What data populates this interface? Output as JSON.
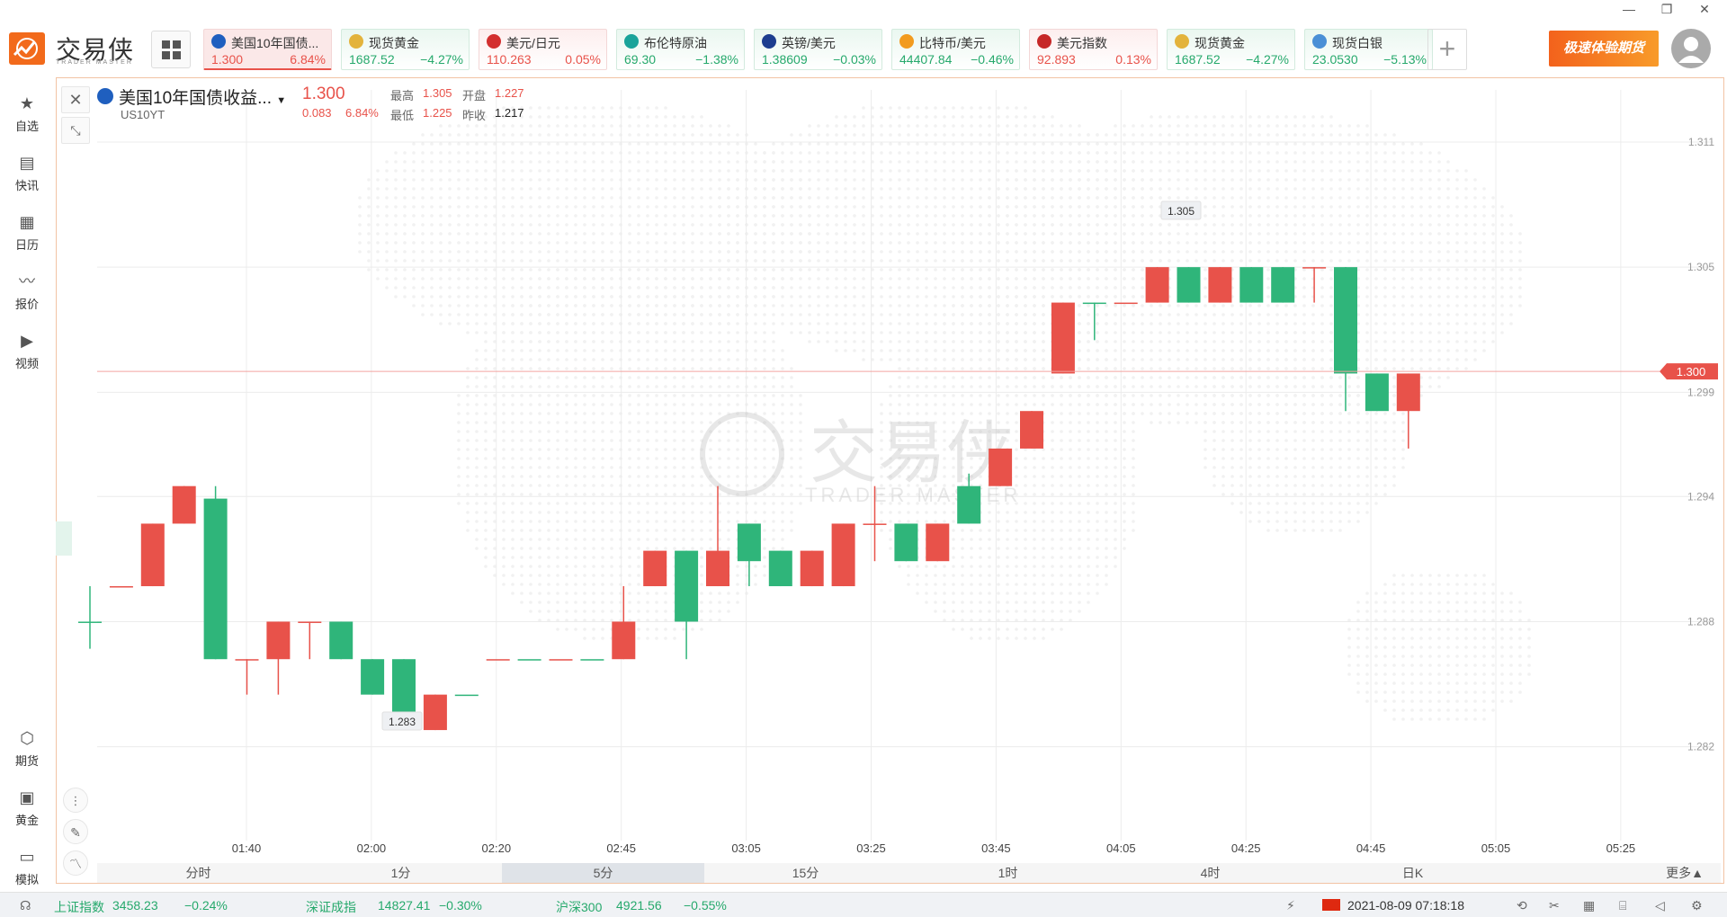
{
  "app": {
    "logo_cn": "交易侠",
    "logo_en": "TRADER MASTER"
  },
  "tickers": [
    {
      "name": "美国10年国债...",
      "price": "1.300",
      "change": "6.84%",
      "trend": "up",
      "icon_color": "#1f5fbf",
      "icon": "bars-icon",
      "active": true
    },
    {
      "name": "现货黄金",
      "price": "1687.52",
      "change": "−4.27%",
      "trend": "down",
      "icon_color": "#e3b33c",
      "icon": "gold-icon"
    },
    {
      "name": "美元/日元",
      "price": "110.263",
      "change": "0.05%",
      "trend": "up",
      "icon_color": "#d32f2f",
      "icon": "flag-us-jp-icon"
    },
    {
      "name": "布伦特原油",
      "price": "69.30",
      "change": "−1.38%",
      "trend": "down",
      "icon_color": "#1aa39a",
      "icon": "oil-icon"
    },
    {
      "name": "英镑/美元",
      "price": "1.38609",
      "change": "−0.03%",
      "trend": "down",
      "icon_color": "#1d3d8f",
      "icon": "flag-uk-us-icon"
    },
    {
      "name": "比特币/美元",
      "price": "44407.84",
      "change": "−0.46%",
      "trend": "down",
      "icon_color": "#f29b1f",
      "icon": "bitcoin-icon"
    },
    {
      "name": "美元指数",
      "price": "92.893",
      "change": "0.13%",
      "trend": "up",
      "icon_color": "#c62828",
      "icon": "flag-us-icon"
    },
    {
      "name": "现货黄金",
      "price": "1687.52",
      "change": "−4.27%",
      "trend": "down",
      "icon_color": "#e3b33c",
      "icon": "gold-icon"
    },
    {
      "name": "现货白银",
      "price": "23.0530",
      "change": "−5.13%",
      "trend": "down",
      "icon_color": "#4a8fd6",
      "icon": "silver-icon"
    }
  ],
  "promo": "极速体验期货",
  "sidebar": [
    {
      "label": "自选",
      "icon": "star-bookmark-icon"
    },
    {
      "label": "快讯",
      "icon": "news-icon"
    },
    {
      "label": "日历",
      "icon": "calendar-icon"
    },
    {
      "label": "报价",
      "icon": "quote-chart-icon"
    },
    {
      "label": "视频",
      "icon": "video-icon"
    },
    {
      "label": "期货",
      "icon": "futures-icon"
    },
    {
      "label": "黄金",
      "icon": "gold-chip-icon"
    },
    {
      "label": "模拟",
      "icon": "wallet-icon"
    }
  ],
  "symbol": {
    "name": "美国10年国债收益...",
    "code": "US10YT",
    "price": "1.300",
    "change": "0.083",
    "change_pct": "6.84%",
    "high_label": "最高",
    "high": "1.305",
    "low_label": "最低",
    "low": "1.225",
    "open_label": "开盘",
    "open": "1.227",
    "prev_label": "昨收",
    "prev": "1.217"
  },
  "watermark": {
    "cn": "交易侠",
    "en": "TRADER MASTER"
  },
  "intervals": {
    "items": [
      "分时",
      "1分",
      "5分",
      "15分",
      "1时",
      "4时",
      "日K"
    ],
    "selected": "5分",
    "more": "更多▲"
  },
  "status": {
    "items": [
      {
        "name": "上证指数",
        "value": "3458.23",
        "change": "−0.24%"
      },
      {
        "name": "深证成指",
        "value": "14827.41",
        "change": "−0.30%"
      },
      {
        "name": "沪深300",
        "value": "4921.56",
        "change": "−0.55%"
      }
    ],
    "datetime": "2021-08-09 07:18:18"
  },
  "chart_data": {
    "type": "candlestick",
    "y_axis_ticks": [
      "1.311",
      "1.305",
      "1.299",
      "1.294",
      "1.288",
      "1.282"
    ],
    "x_axis_ticks": [
      "01:40",
      "02:00",
      "02:20",
      "02:45",
      "03:05",
      "03:25",
      "03:45",
      "04:05",
      "04:25",
      "04:45",
      "05:05",
      "05:25"
    ],
    "ylim": [
      1.2775,
      1.3135
    ],
    "current_price_label": "1.300",
    "current_price": 1.3,
    "high_marker": "1.305",
    "low_marker": "1.283",
    "grid": true,
    "candles": [
      {
        "o": 1.288,
        "c": 1.288,
        "h": 1.2897,
        "l": 1.2867
      },
      {
        "o": 1.2897,
        "c": 1.2897,
        "h": 1.2897,
        "l": 1.2897
      },
      {
        "o": 1.2897,
        "c": 1.2927,
        "h": 1.2927,
        "l": 1.2897
      },
      {
        "o": 1.2927,
        "c": 1.2945,
        "h": 1.2945,
        "l": 1.2927
      },
      {
        "o": 1.2939,
        "c": 1.2862,
        "h": 1.2945,
        "l": 1.2862
      },
      {
        "o": 1.2862,
        "c": 1.2862,
        "h": 1.2862,
        "l": 1.2845
      },
      {
        "o": 1.2862,
        "c": 1.288,
        "h": 1.288,
        "l": 1.2845
      },
      {
        "o": 1.288,
        "c": 1.288,
        "h": 1.288,
        "l": 1.2862
      },
      {
        "o": 1.288,
        "c": 1.2862,
        "h": 1.288,
        "l": 1.2862
      },
      {
        "o": 1.2862,
        "c": 1.2845,
        "h": 1.2862,
        "l": 1.2845
      },
      {
        "o": 1.2862,
        "c": 1.2828,
        "h": 1.2862,
        "l": 1.2828
      },
      {
        "o": 1.2828,
        "c": 1.2845,
        "h": 1.2845,
        "l": 1.2828
      },
      {
        "o": 1.2845,
        "c": 1.2845,
        "h": 1.2845,
        "l": 1.2845
      },
      {
        "o": 1.2862,
        "c": 1.2862,
        "h": 1.2862,
        "l": 1.2862
      },
      {
        "o": 1.2862,
        "c": 1.2862,
        "h": 1.2862,
        "l": 1.2862
      },
      {
        "o": 1.2862,
        "c": 1.2862,
        "h": 1.2862,
        "l": 1.2862
      },
      {
        "o": 1.2862,
        "c": 1.2862,
        "h": 1.2862,
        "l": 1.2862
      },
      {
        "o": 1.2862,
        "c": 1.288,
        "h": 1.2897,
        "l": 1.2862
      },
      {
        "o": 1.2897,
        "c": 1.2914,
        "h": 1.2914,
        "l": 1.2897
      },
      {
        "o": 1.2914,
        "c": 1.288,
        "h": 1.2914,
        "l": 1.2862
      },
      {
        "o": 1.2897,
        "c": 1.2914,
        "h": 1.2945,
        "l": 1.2897
      },
      {
        "o": 1.2927,
        "c": 1.2909,
        "h": 1.2927,
        "l": 1.2897
      },
      {
        "o": 1.2914,
        "c": 1.2897,
        "h": 1.2914,
        "l": 1.2897
      },
      {
        "o": 1.2897,
        "c": 1.2914,
        "h": 1.2914,
        "l": 1.2897
      },
      {
        "o": 1.2897,
        "c": 1.2927,
        "h": 1.2927,
        "l": 1.2897
      },
      {
        "o": 1.2927,
        "c": 1.2927,
        "h": 1.2945,
        "l": 1.2909
      },
      {
        "o": 1.2927,
        "c": 1.2909,
        "h": 1.2927,
        "l": 1.2909
      },
      {
        "o": 1.2909,
        "c": 1.2927,
        "h": 1.2927,
        "l": 1.2909
      },
      {
        "o": 1.2945,
        "c": 1.2927,
        "h": 1.2951,
        "l": 1.2927
      },
      {
        "o": 1.2945,
        "c": 1.2963,
        "h": 1.2963,
        "l": 1.2945
      },
      {
        "o": 1.2963,
        "c": 1.2981,
        "h": 1.2981,
        "l": 1.2963
      },
      {
        "o": 1.2999,
        "c": 1.3033,
        "h": 1.3033,
        "l": 1.2999
      },
      {
        "o": 1.3033,
        "c": 1.3033,
        "h": 1.3033,
        "l": 1.3015
      },
      {
        "o": 1.3033,
        "c": 1.3033,
        "h": 1.3033,
        "l": 1.3033
      },
      {
        "o": 1.3033,
        "c": 1.305,
        "h": 1.305,
        "l": 1.3033
      },
      {
        "o": 1.305,
        "c": 1.3033,
        "h": 1.305,
        "l": 1.3033
      },
      {
        "o": 1.3033,
        "c": 1.305,
        "h": 1.305,
        "l": 1.3033
      },
      {
        "o": 1.305,
        "c": 1.3033,
        "h": 1.305,
        "l": 1.3033
      },
      {
        "o": 1.305,
        "c": 1.3033,
        "h": 1.305,
        "l": 1.3033
      },
      {
        "o": 1.305,
        "c": 1.305,
        "h": 1.305,
        "l": 1.3033
      },
      {
        "o": 1.305,
        "c": 1.2999,
        "h": 1.305,
        "l": 1.2981
      },
      {
        "o": 1.2999,
        "c": 1.2981,
        "h": 1.2999,
        "l": 1.2981
      },
      {
        "o": 1.2981,
        "c": 1.2999,
        "h": 1.2999,
        "l": 1.2963
      }
    ]
  }
}
